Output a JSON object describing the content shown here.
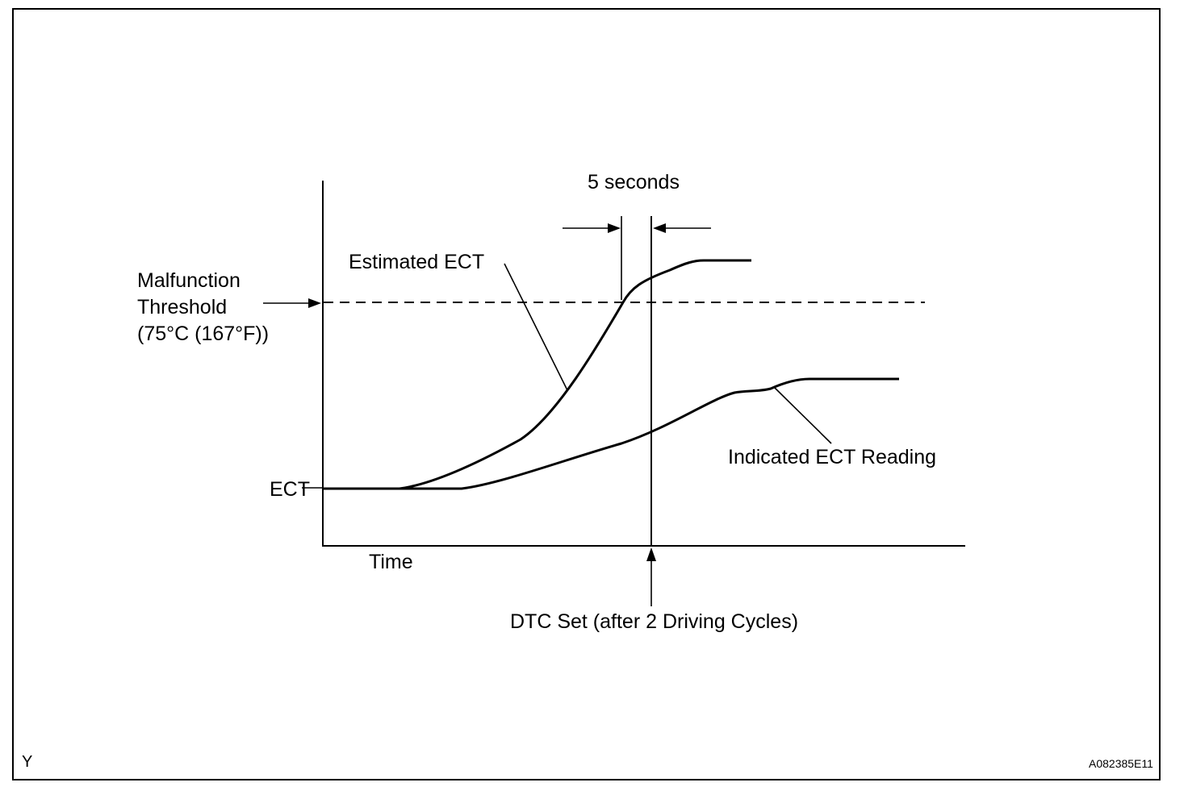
{
  "labels": {
    "five_seconds": "5 seconds",
    "estimated_ect": "Estimated ECT",
    "threshold_line1": "Malfunction",
    "threshold_line2": "Threshold",
    "threshold_line3": "(75°C (167°F))",
    "ect": "ECT",
    "time": "Time",
    "indicated_ect": "Indicated ECT Reading",
    "dtc_set": "DTC Set (after 2 Driving Cycles)",
    "corner_left": "Y",
    "figure_code": "A082385E11"
  }
}
